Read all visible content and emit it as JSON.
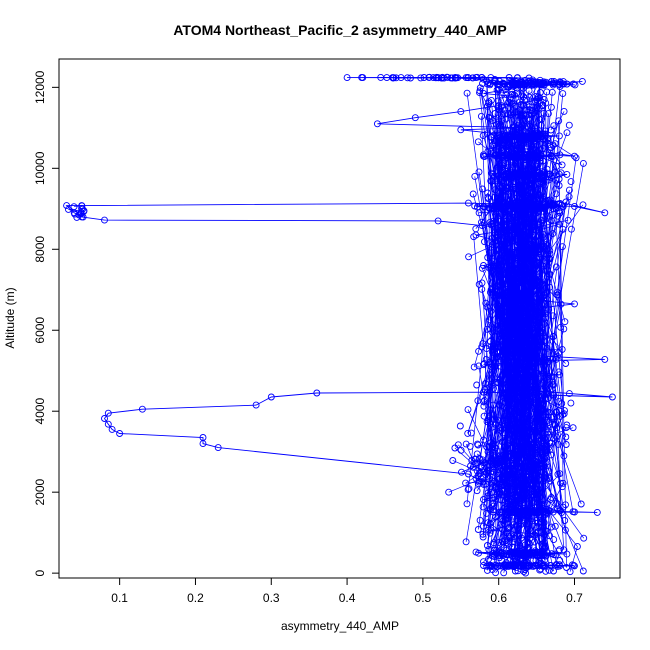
{
  "chart_data": {
    "type": "scatter",
    "title": "ATOM4 Northeast_Pacific_2 asymmetry_440_AMP",
    "xlabel": "asymmetry_440_AMP",
    "ylabel": "Altitude (m)",
    "xlim": [
      0.02,
      0.76
    ],
    "ylim": [
      -120,
      12700
    ],
    "xticks": [
      0.1,
      0.2,
      0.3,
      0.4,
      0.5,
      0.6,
      0.7
    ],
    "xtick_labels": [
      "0.1",
      "0.2",
      "0.3",
      "0.4",
      "0.5",
      "0.6",
      "0.7"
    ],
    "yticks": [
      0,
      2000,
      4000,
      6000,
      8000,
      10000,
      12000
    ],
    "ytick_labels": [
      "0",
      "2000",
      "4000",
      "6000",
      "8000",
      "10000",
      "12000"
    ],
    "grid": false,
    "legend": "none",
    "marker": "open-circle",
    "connected": true,
    "color": "#0000ff",
    "series": [
      {
        "values": [
          [
            0.59,
            180
          ],
          [
            0.62,
            180
          ],
          [
            0.66,
            180
          ],
          [
            0.7,
            180
          ],
          [
            0.58,
            190
          ],
          [
            0.61,
            260
          ],
          [
            0.63,
            320
          ],
          [
            0.6,
            430
          ],
          [
            0.57,
            520
          ],
          [
            0.62,
            480
          ],
          [
            0.67,
            480
          ],
          [
            0.69,
            470
          ],
          [
            0.61,
            560
          ],
          [
            0.64,
            640
          ],
          [
            0.6,
            760
          ],
          [
            0.63,
            870
          ],
          [
            0.66,
            950
          ],
          [
            0.59,
            1060
          ],
          [
            0.62,
            1200
          ],
          [
            0.65,
            1300
          ],
          [
            0.63,
            1430
          ],
          [
            0.66,
            1500
          ],
          [
            0.7,
            1510
          ],
          [
            0.73,
            1500
          ],
          [
            0.61,
            1560
          ],
          [
            0.62,
            1690
          ],
          [
            0.58,
            1820
          ],
          [
            0.61,
            1950
          ],
          [
            0.64,
            2060
          ],
          [
            0.6,
            2200
          ],
          [
            0.57,
            2340
          ],
          [
            0.56,
            2450
          ],
          [
            0.23,
            3100
          ],
          [
            0.21,
            3200
          ],
          [
            0.21,
            3350
          ],
          [
            0.1,
            3450
          ],
          [
            0.09,
            3550
          ],
          [
            0.085,
            3680
          ],
          [
            0.08,
            3820
          ],
          [
            0.085,
            3950
          ],
          [
            0.13,
            4050
          ],
          [
            0.28,
            4150
          ],
          [
            0.3,
            4350
          ],
          [
            0.36,
            4450
          ],
          [
            0.58,
            4470
          ],
          [
            0.62,
            4450
          ],
          [
            0.66,
            4400
          ],
          [
            0.75,
            4350
          ],
          [
            0.62,
            4550
          ],
          [
            0.6,
            4700
          ],
          [
            0.64,
            4850
          ],
          [
            0.68,
            4900
          ],
          [
            0.61,
            5000
          ],
          [
            0.58,
            5150
          ],
          [
            0.66,
            5250
          ],
          [
            0.74,
            5280
          ],
          [
            0.62,
            5400
          ],
          [
            0.59,
            5600
          ],
          [
            0.63,
            5800
          ],
          [
            0.61,
            6000
          ],
          [
            0.66,
            6150
          ],
          [
            0.6,
            6320
          ],
          [
            0.63,
            6500
          ],
          [
            0.7,
            6650
          ],
          [
            0.62,
            6800
          ],
          [
            0.59,
            7000
          ],
          [
            0.64,
            7200
          ],
          [
            0.61,
            7400
          ],
          [
            0.58,
            7600
          ],
          [
            0.63,
            7800
          ],
          [
            0.66,
            8000
          ],
          [
            0.6,
            8200
          ],
          [
            0.57,
            8350
          ],
          [
            0.62,
            8500
          ],
          [
            0.52,
            8700
          ],
          [
            0.08,
            8720
          ],
          [
            0.05,
            8800
          ],
          [
            0.04,
            8900
          ],
          [
            0.03,
            9080
          ],
          [
            0.05,
            9080
          ],
          [
            0.56,
            9140
          ],
          [
            0.63,
            9100
          ],
          [
            0.7,
            9060
          ],
          [
            0.74,
            8900
          ],
          [
            0.65,
            9300
          ],
          [
            0.61,
            9500
          ],
          [
            0.66,
            9700
          ],
          [
            0.69,
            9850
          ],
          [
            0.63,
            9900
          ],
          [
            0.6,
            10050
          ],
          [
            0.65,
            10200
          ],
          [
            0.58,
            10300
          ],
          [
            0.63,
            10350
          ],
          [
            0.7,
            10300
          ],
          [
            0.61,
            10550
          ],
          [
            0.64,
            10750
          ],
          [
            0.68,
            10800
          ],
          [
            0.6,
            10850
          ],
          [
            0.55,
            10950
          ],
          [
            0.63,
            11000
          ],
          [
            0.44,
            11100
          ],
          [
            0.49,
            11250
          ],
          [
            0.55,
            11400
          ],
          [
            0.6,
            11550
          ],
          [
            0.66,
            11700
          ],
          [
            0.58,
            11850
          ],
          [
            0.63,
            12000
          ],
          [
            0.69,
            12080
          ],
          [
            0.66,
            12050
          ],
          [
            0.62,
            12100
          ],
          [
            0.58,
            12200
          ],
          [
            0.52,
            12240
          ],
          [
            0.46,
            12240
          ],
          [
            0.4,
            12240
          ],
          [
            0.64,
            12230
          ],
          [
            0.69,
            12080
          ]
        ]
      }
    ],
    "clusters": [
      {
        "xc": 0.63,
        "xs": 0.028,
        "y0": 0,
        "y1": 12200,
        "n": 1400
      },
      {
        "xc": 0.64,
        "xs": 0.03,
        "y0": 12050,
        "y1": 12150,
        "n": 70
      },
      {
        "xc": 0.52,
        "xs": 0.06,
        "y0": 12230,
        "y1": 12250,
        "n": 45
      },
      {
        "xc": 0.63,
        "xs": 0.022,
        "y0": 10700,
        "y1": 10850,
        "n": 60
      },
      {
        "xc": 0.63,
        "xs": 0.022,
        "y0": 10250,
        "y1": 10350,
        "n": 60
      },
      {
        "xc": 0.63,
        "xs": 0.022,
        "y0": 9780,
        "y1": 9880,
        "n": 60
      },
      {
        "xc": 0.63,
        "xs": 0.025,
        "y0": 9000,
        "y1": 9150,
        "n": 100
      },
      {
        "xc": 0.635,
        "xs": 0.022,
        "y0": 1480,
        "y1": 1560,
        "n": 60
      },
      {
        "xc": 0.635,
        "xs": 0.022,
        "y0": 420,
        "y1": 520,
        "n": 70
      },
      {
        "xc": 0.635,
        "xs": 0.03,
        "y0": 160,
        "y1": 210,
        "n": 60
      },
      {
        "xc": 0.6,
        "xs": 0.025,
        "y0": 1800,
        "y1": 3200,
        "n": 120
      },
      {
        "xc": 0.045,
        "xs": 0.006,
        "y0": 8780,
        "y1": 9100,
        "n": 14
      }
    ]
  }
}
